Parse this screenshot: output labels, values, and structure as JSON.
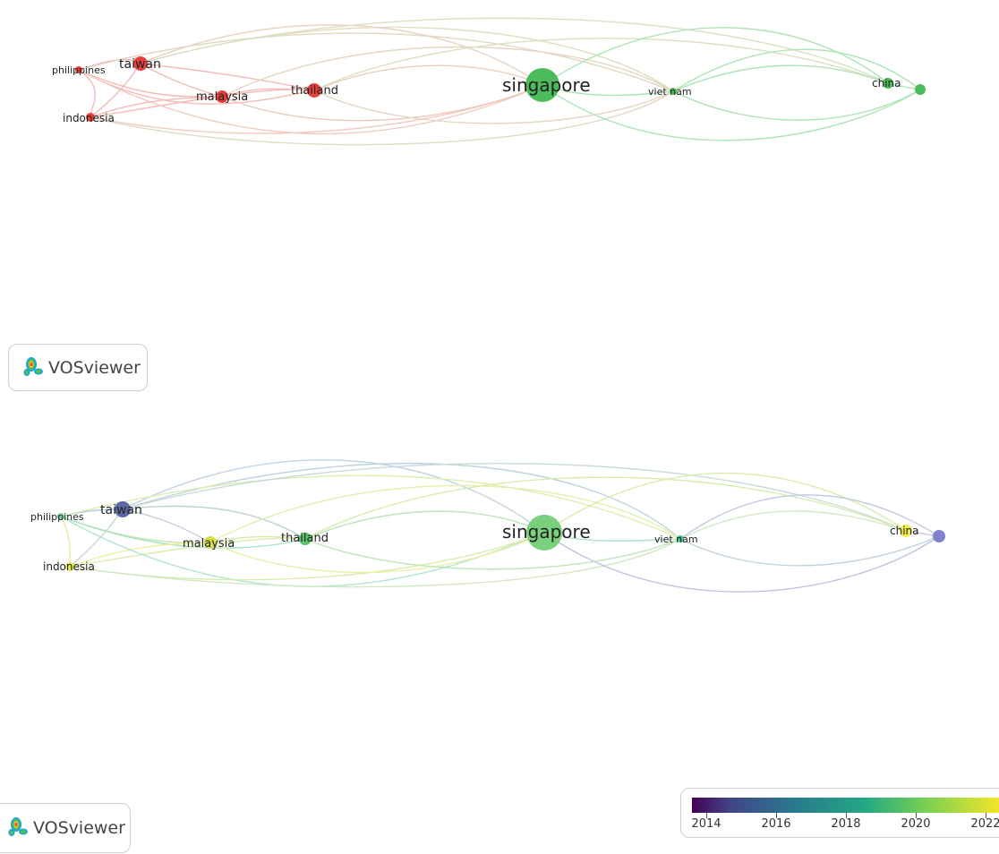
{
  "top_map": {
    "nodes": [
      {
        "label": "philippines"
      },
      {
        "label": "taiwan"
      },
      {
        "label": "indonesia"
      },
      {
        "label": "malaysia"
      },
      {
        "label": "thailand"
      },
      {
        "label": "singapore"
      },
      {
        "label": "viet nam"
      },
      {
        "label": "china"
      }
    ],
    "cluster_colors": {
      "cluster1": "#e8413c",
      "cluster2": "#3cb44b"
    }
  },
  "bottom_map": {
    "nodes": [
      {
        "label": "philippines"
      },
      {
        "label": "taiwan"
      },
      {
        "label": "indonesia"
      },
      {
        "label": "malaysia"
      },
      {
        "label": "thailand"
      },
      {
        "label": "singapore"
      },
      {
        "label": "viet nam"
      },
      {
        "label": "china"
      }
    ]
  },
  "branding": {
    "top_logo_text": "VOSviewer",
    "bottom_logo_text": "VOSviewer"
  },
  "legend": {
    "ticks": [
      "2014",
      "2016",
      "2018",
      "2020",
      "2022"
    ]
  }
}
